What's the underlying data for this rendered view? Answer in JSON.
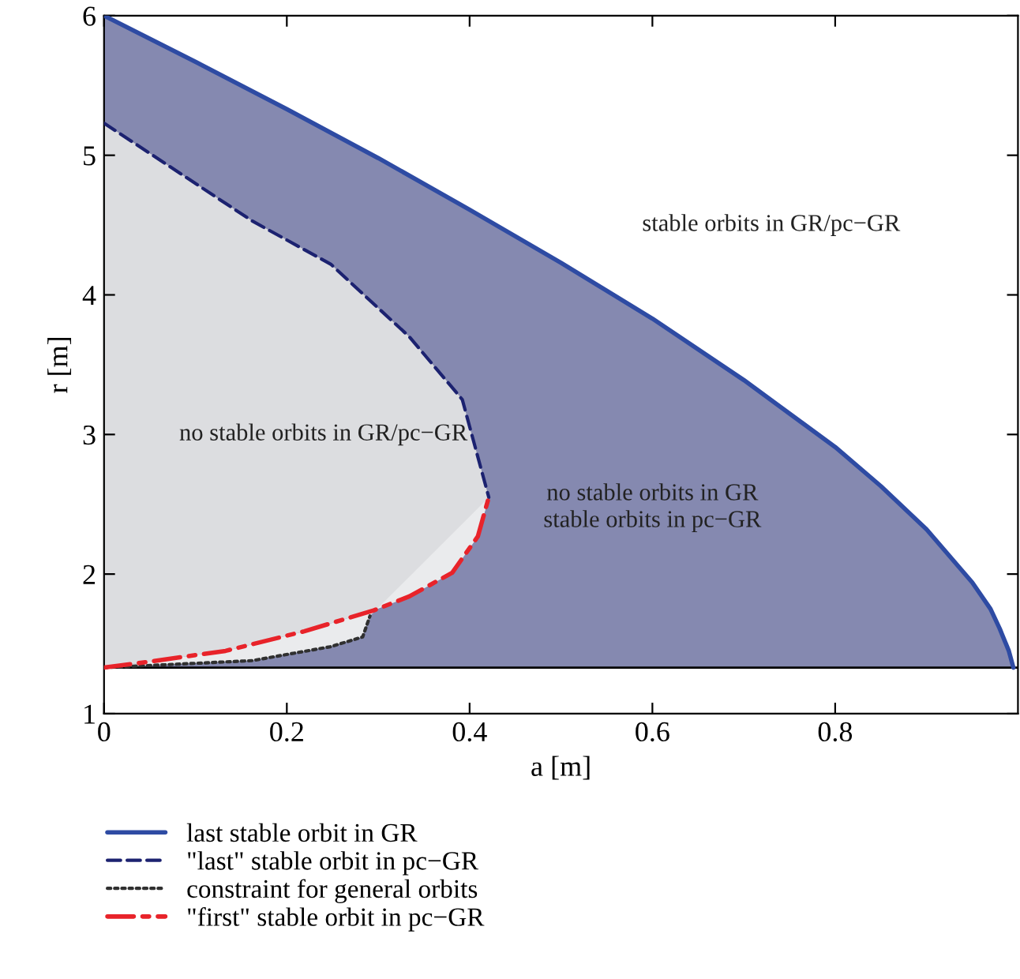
{
  "chart_data": {
    "type": "line",
    "xlabel": "a [m]",
    "ylabel": "r [m]",
    "xlim": [
      0,
      1
    ],
    "ylim": [
      1,
      6
    ],
    "xticks": [
      0,
      0.2,
      0.4,
      0.6,
      0.8
    ],
    "yticks": [
      1,
      2,
      3,
      4,
      5,
      6
    ],
    "grid": false,
    "legend": "bottom",
    "ref_lines": [
      {
        "axis": "y",
        "value": 1.33,
        "color": "#000000"
      }
    ],
    "series": [
      {
        "name": "last stable orbit in GR",
        "color": "#2e4ba3",
        "line_style": "solid",
        "x": [
          0,
          0.1,
          0.2,
          0.3,
          0.4,
          0.5,
          0.6,
          0.7,
          0.8,
          0.85,
          0.9,
          0.95,
          0.97,
          0.98,
          0.99,
          0.995
        ],
        "values": [
          6,
          5.67,
          5.33,
          4.98,
          4.61,
          4.23,
          3.83,
          3.39,
          2.91,
          2.63,
          2.32,
          1.94,
          1.75,
          1.61,
          1.45,
          1.33
        ]
      },
      {
        "name": "\"last\" stable orbit in pc−GR",
        "color": "#1c2270",
        "line_style": "dashed",
        "x": [
          0,
          0.162,
          0.248,
          0.334,
          0.392,
          0.421
        ],
        "values": [
          5.23,
          4.53,
          4.22,
          3.7,
          3.25,
          2.55
        ]
      },
      {
        "name": "constraint for general orbits",
        "color": "#303030",
        "line_style": "dotted",
        "x": [
          0,
          0.162,
          0.248,
          0.283,
          0.291
        ],
        "values": [
          1.33,
          1.38,
          1.48,
          1.55,
          1.7
        ]
      },
      {
        "name": "\"first\" stable orbit in pc−GR",
        "color": "#e8232a",
        "line_style": "dashdot",
        "x": [
          0,
          0.047,
          0.133,
          0.219,
          0.295,
          0.334,
          0.381,
          0.409,
          0.421
        ],
        "values": [
          1.33,
          1.37,
          1.45,
          1.59,
          1.74,
          1.84,
          2.01,
          2.27,
          2.55
        ]
      }
    ],
    "annotations": [
      "stable orbits in GR/pc−GR",
      "no stable orbits in GR/pc−GR",
      "no stable orbits in GR\nstable orbits in pc−GR"
    ]
  }
}
